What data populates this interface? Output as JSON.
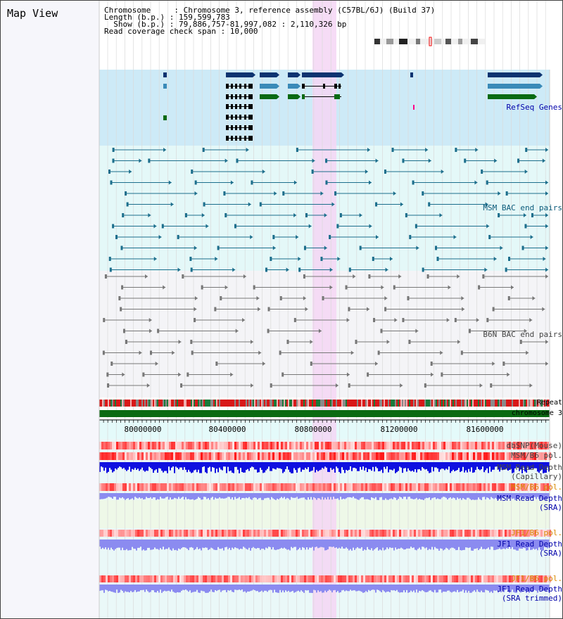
{
  "title": "Map View",
  "info": {
    "line1": "Chromosome     : Chromosome 3, reference assembly (C57BL/6J) (Build 37)",
    "line2": "Length (b.p.) : 159,599,783",
    "line3": "  Show (b.p.) : 79,886,757-81,997,082 : 2,110,326 bp",
    "line4": "Read coverage check span : 10,000"
  },
  "tracks": {
    "refseq": "RefSeq Genes",
    "msm_bac": "MSM BAC end pairs",
    "b6n_bac": "B6N BAC end pairs",
    "repeat": "Repeat",
    "chromosome": "chromosome 3",
    "dbsnp": "dbSNP(Mouse)",
    "msm_b6_pol_1": "MSM/B6 pol.",
    "msm_read_depth_cap": "MSM Read Depth\n(Capillary)",
    "msm_b6_pol_2": "MSM/B6 pol.",
    "msm_read_depth_sra": "MSM Read Depth\n(SRA)",
    "jf1_b6_pol_1": "JF1/B6 pol.",
    "jf1_read_depth_sra": "JF1 Read Depth\n(SRA)",
    "jf1_b6_pol_2": "JF1/B6 pol.",
    "jf1_read_depth_trim": "JF1 Read Depth\n(SRA trimmed)"
  },
  "axis": {
    "labels": [
      "80000000",
      "80400000",
      "80800000",
      "81200000",
      "81600000"
    ]
  },
  "colors": {
    "refseq_bg": "#cdeaf7",
    "msm_bg": "#e4f8f8",
    "b6n_bg": "#f4f4f7",
    "highlight": "#f4d6f4",
    "gene_dark": "#0d3370",
    "gene_mid": "#3a8ab8",
    "gene_green": "#0a6a12",
    "bac_teal": "#1c6e8c",
    "bac_gray": "#777777",
    "depth_blue": "#1010e0",
    "depth_light": "#8b8bf0"
  }
}
